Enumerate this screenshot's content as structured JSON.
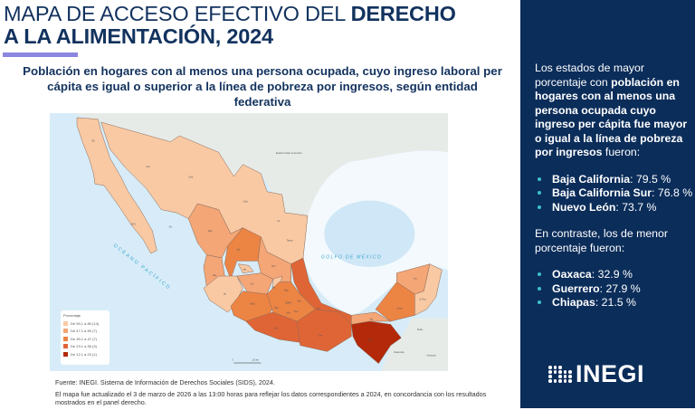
{
  "header": {
    "title_regular": "MAPA DE ACCESO EFECTIVO DEL ",
    "title_bold_1": "DERECHO",
    "title_bold_2": "A LA ALIMENTACIÓN, 2024",
    "subtitle": "Población en hogares con al menos una persona ocupada, cuyo ingreso laboral per cápita es igual o superior a la línea de pobreza por ingresos, según entidad federativa"
  },
  "map": {
    "labels": {
      "usa": "Estados Unidos de América",
      "gulf": "GOLFO DE MÉXICO",
      "pacific": "OCÉANO PACÍFICO",
      "guatemala": "Guatemala",
      "belice": "Belice",
      "honduras": "Honduras",
      "scale": "210 km",
      "scale_zero": "0",
      "states": [
        "BC",
        "BCS",
        "Son.",
        "Chih.",
        "Coah.",
        "NL",
        "Tamps.",
        "Sin.",
        "Dgo.",
        "Zac.",
        "SLP",
        "Nay.",
        "Ags.",
        "Jal.",
        "Gto.",
        "Qro.",
        "Hgo.",
        "Mich.",
        "Méx.",
        "Col.",
        "Gro.",
        "Oax.",
        "Pue.",
        "Ver.",
        "Tab.",
        "Chis.",
        "Camp.",
        "Yuc.",
        "Q. Roo",
        "Tlax.",
        "Mor.",
        "CDMX"
      ]
    },
    "legend": {
      "title": "Porcentaje",
      "items": [
        {
          "label": "De 59.1 a 80 (14)",
          "color": "#f9c9a4"
        },
        {
          "label": "De 47.1 a 59 (7)",
          "color": "#f4a676"
        },
        {
          "label": "De 35.1 a 47 (7)",
          "color": "#ec8444"
        },
        {
          "label": "De 23.1 a 35 (3)",
          "color": "#df6536"
        },
        {
          "label": "De 12.1 a 23 (1)",
          "color": "#b3290a"
        }
      ]
    }
  },
  "footer": {
    "source": "Fuente: INEGI. Sistema de Información de Derechos Sociales (SIDS), 2024.",
    "note": "El mapa fue actualizado el 3 de marzo de 2026 a las 13:00 horas para reflejar los datos correspondientes a 2024, en concordancia con los resultados mostrados en el panel derecho."
  },
  "panel": {
    "intro_1": "Los estados de mayor porcentaje con ",
    "intro_bold": "población en hogares con al menos una persona ocupada cuyo ingreso per cápita fue mayor o igual a la línea de pobreza por ingresos",
    "intro_2": " fueron:",
    "top": [
      {
        "state": "Baja California",
        "value": ": 79.5 %"
      },
      {
        "state": "Baja California Sur",
        "value": ": 76.8 %"
      },
      {
        "state": "Nuevo León",
        "value": ": 73.7 %"
      }
    ],
    "contrast": "En contraste, los de menor porcentaje fueron:",
    "bottom": [
      {
        "state": "Oaxaca",
        "value": ": 32.9 %"
      },
      {
        "state": "Guerrero",
        "value": ": 27.9 %"
      },
      {
        "state": "Chiapas",
        "value": ": 21.5 %"
      }
    ]
  },
  "logo": {
    "text": "INEGI"
  }
}
